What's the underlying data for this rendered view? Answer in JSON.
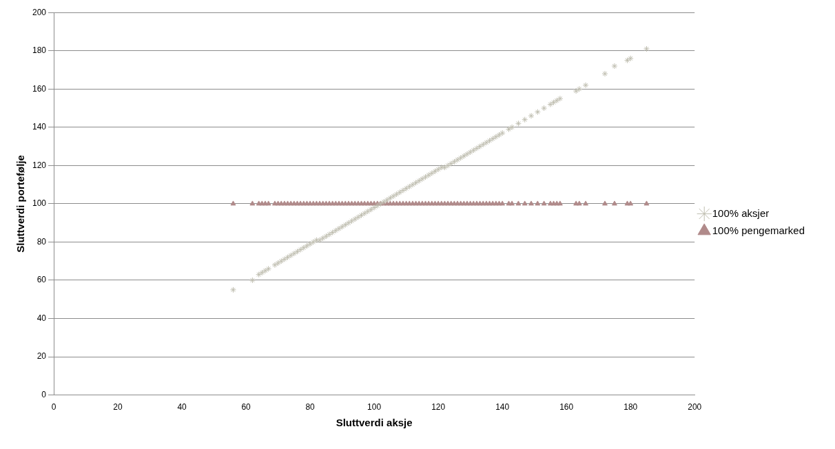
{
  "chart_data": {
    "type": "scatter",
    "xlabel": "Sluttverdi aksje",
    "ylabel": "Sluttverdi portefølje",
    "xlim": [
      0,
      200
    ],
    "xticks": [
      0,
      20,
      40,
      60,
      80,
      100,
      120,
      140,
      160,
      180,
      200
    ],
    "ylim": [
      0,
      200
    ],
    "yticks": [
      0,
      20,
      40,
      60,
      80,
      100,
      120,
      140,
      160,
      180,
      200
    ],
    "grid": "y",
    "legend": "right",
    "series": [
      {
        "name": "100% aksjer",
        "color": "#bfbeb0",
        "marker": "cross",
        "x": [
          56,
          62,
          64,
          65,
          66,
          67,
          69,
          70,
          71,
          72,
          73,
          74,
          75,
          76,
          77,
          78,
          79,
          80,
          81,
          82,
          83,
          84,
          85,
          86,
          87,
          88,
          89,
          90,
          91,
          92,
          93,
          94,
          95,
          96,
          97,
          98,
          99,
          100,
          101,
          102,
          103,
          104,
          105,
          106,
          107,
          108,
          109,
          110,
          111,
          112,
          113,
          114,
          115,
          116,
          117,
          118,
          119,
          120,
          121,
          122,
          123,
          124,
          125,
          126,
          127,
          128,
          129,
          130,
          131,
          132,
          133,
          134,
          135,
          136,
          137,
          138,
          139,
          140,
          142,
          143,
          145,
          147,
          149,
          151,
          153,
          155,
          156,
          157,
          158,
          163,
          164,
          166,
          172,
          175,
          179,
          180,
          185
        ],
        "values": [
          55,
          60,
          63,
          64,
          65,
          66,
          68,
          69,
          70,
          71,
          72,
          73,
          74,
          75,
          76,
          77,
          78,
          79,
          80,
          81,
          81,
          82,
          83,
          84,
          85,
          86,
          87,
          88,
          89,
          90,
          91,
          92,
          93,
          94,
          95,
          96,
          97,
          98,
          99,
          100,
          101,
          102,
          103,
          104,
          105,
          106,
          107,
          108,
          109,
          110,
          111,
          112,
          113,
          114,
          115,
          116,
          117,
          118,
          119,
          119,
          120,
          121,
          122,
          123,
          124,
          125,
          126,
          127,
          128,
          129,
          130,
          131,
          132,
          133,
          134,
          135,
          136,
          137,
          139,
          140,
          142,
          144,
          146,
          148,
          150,
          152,
          153,
          154,
          155,
          159,
          160,
          162,
          168,
          172,
          175,
          176,
          181
        ]
      },
      {
        "name": "100% pengemarked",
        "color": "#b08a8a",
        "marker": "triangle",
        "x": [
          56,
          62,
          64,
          65,
          66,
          67,
          69,
          70,
          71,
          72,
          73,
          74,
          75,
          76,
          77,
          78,
          79,
          80,
          81,
          82,
          83,
          84,
          85,
          86,
          87,
          88,
          89,
          90,
          91,
          92,
          93,
          94,
          95,
          96,
          97,
          98,
          99,
          100,
          101,
          102,
          103,
          104,
          105,
          106,
          107,
          108,
          109,
          110,
          111,
          112,
          113,
          114,
          115,
          116,
          117,
          118,
          119,
          120,
          121,
          122,
          123,
          124,
          125,
          126,
          127,
          128,
          129,
          130,
          131,
          132,
          133,
          134,
          135,
          136,
          137,
          138,
          139,
          140,
          142,
          143,
          145,
          147,
          149,
          151,
          153,
          155,
          156,
          157,
          158,
          163,
          164,
          166,
          172,
          175,
          179,
          180,
          185
        ],
        "values": [
          100,
          100,
          100,
          100,
          100,
          100,
          100,
          100,
          100,
          100,
          100,
          100,
          100,
          100,
          100,
          100,
          100,
          100,
          100,
          100,
          100,
          100,
          100,
          100,
          100,
          100,
          100,
          100,
          100,
          100,
          100,
          100,
          100,
          100,
          100,
          100,
          100,
          100,
          100,
          100,
          100,
          100,
          100,
          100,
          100,
          100,
          100,
          100,
          100,
          100,
          100,
          100,
          100,
          100,
          100,
          100,
          100,
          100,
          100,
          100,
          100,
          100,
          100,
          100,
          100,
          100,
          100,
          100,
          100,
          100,
          100,
          100,
          100,
          100,
          100,
          100,
          100,
          100,
          100,
          100,
          100,
          100,
          100,
          100,
          100,
          100,
          100,
          100,
          100,
          100,
          100,
          100,
          100,
          100,
          100,
          100,
          100
        ]
      }
    ]
  }
}
